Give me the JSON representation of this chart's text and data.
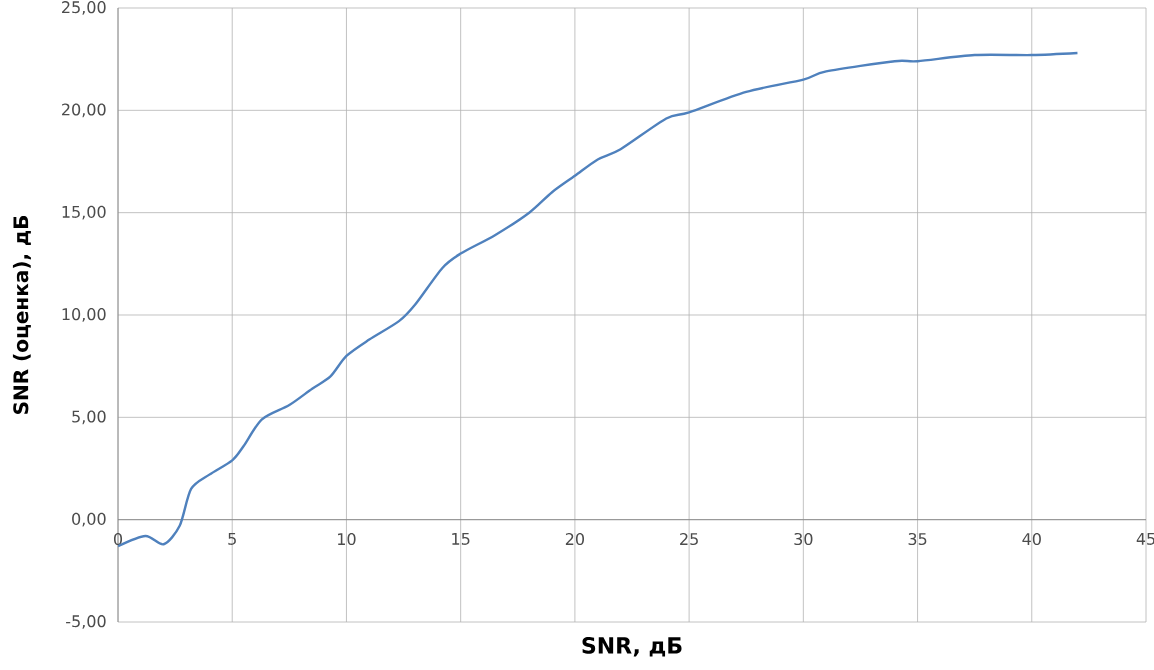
{
  "chart_data": {
    "type": "line",
    "xlabel": "SNR, дБ",
    "ylabel": "SNR (оценка), дБ",
    "xlim": [
      0,
      45
    ],
    "ylim": [
      -5,
      25
    ],
    "xticks": [
      0,
      5,
      10,
      15,
      20,
      25,
      30,
      35,
      40,
      45
    ],
    "yticks": [
      {
        "value": -5,
        "label": "-5,00"
      },
      {
        "value": 0,
        "label": "0,00"
      },
      {
        "value": 5,
        "label": "5,00"
      },
      {
        "value": 10,
        "label": "10,00"
      },
      {
        "value": 15,
        "label": "15,00"
      },
      {
        "value": 20,
        "label": "20,00"
      },
      {
        "value": 25,
        "label": "25,00"
      }
    ],
    "grid": true,
    "marker": "none",
    "line_style": "solid",
    "series": [
      {
        "color": "#4f81bd",
        "x": [
          0,
          1.2,
          2,
          2.7,
          3.2,
          4,
          5,
          5.5,
          6.3,
          7.5,
          8.5,
          9.3,
          10,
          11,
          12.3,
          13,
          14.2,
          15,
          16.5,
          18,
          19,
          20,
          21,
          22,
          24,
          25,
          27.5,
          30,
          31,
          34,
          35,
          37.5,
          40,
          42
        ],
        "values": [
          -1.3,
          -0.8,
          -1.2,
          -0.3,
          1.5,
          2.2,
          2.9,
          3.6,
          4.9,
          5.6,
          6.4,
          7.0,
          8.0,
          8.8,
          9.7,
          10.5,
          12.3,
          13.0,
          13.9,
          15.0,
          16.0,
          16.8,
          17.6,
          18.1,
          19.6,
          19.9,
          20.9,
          21.5,
          21.9,
          22.4,
          22.4,
          22.7,
          22.7,
          22.8
        ]
      }
    ]
  }
}
